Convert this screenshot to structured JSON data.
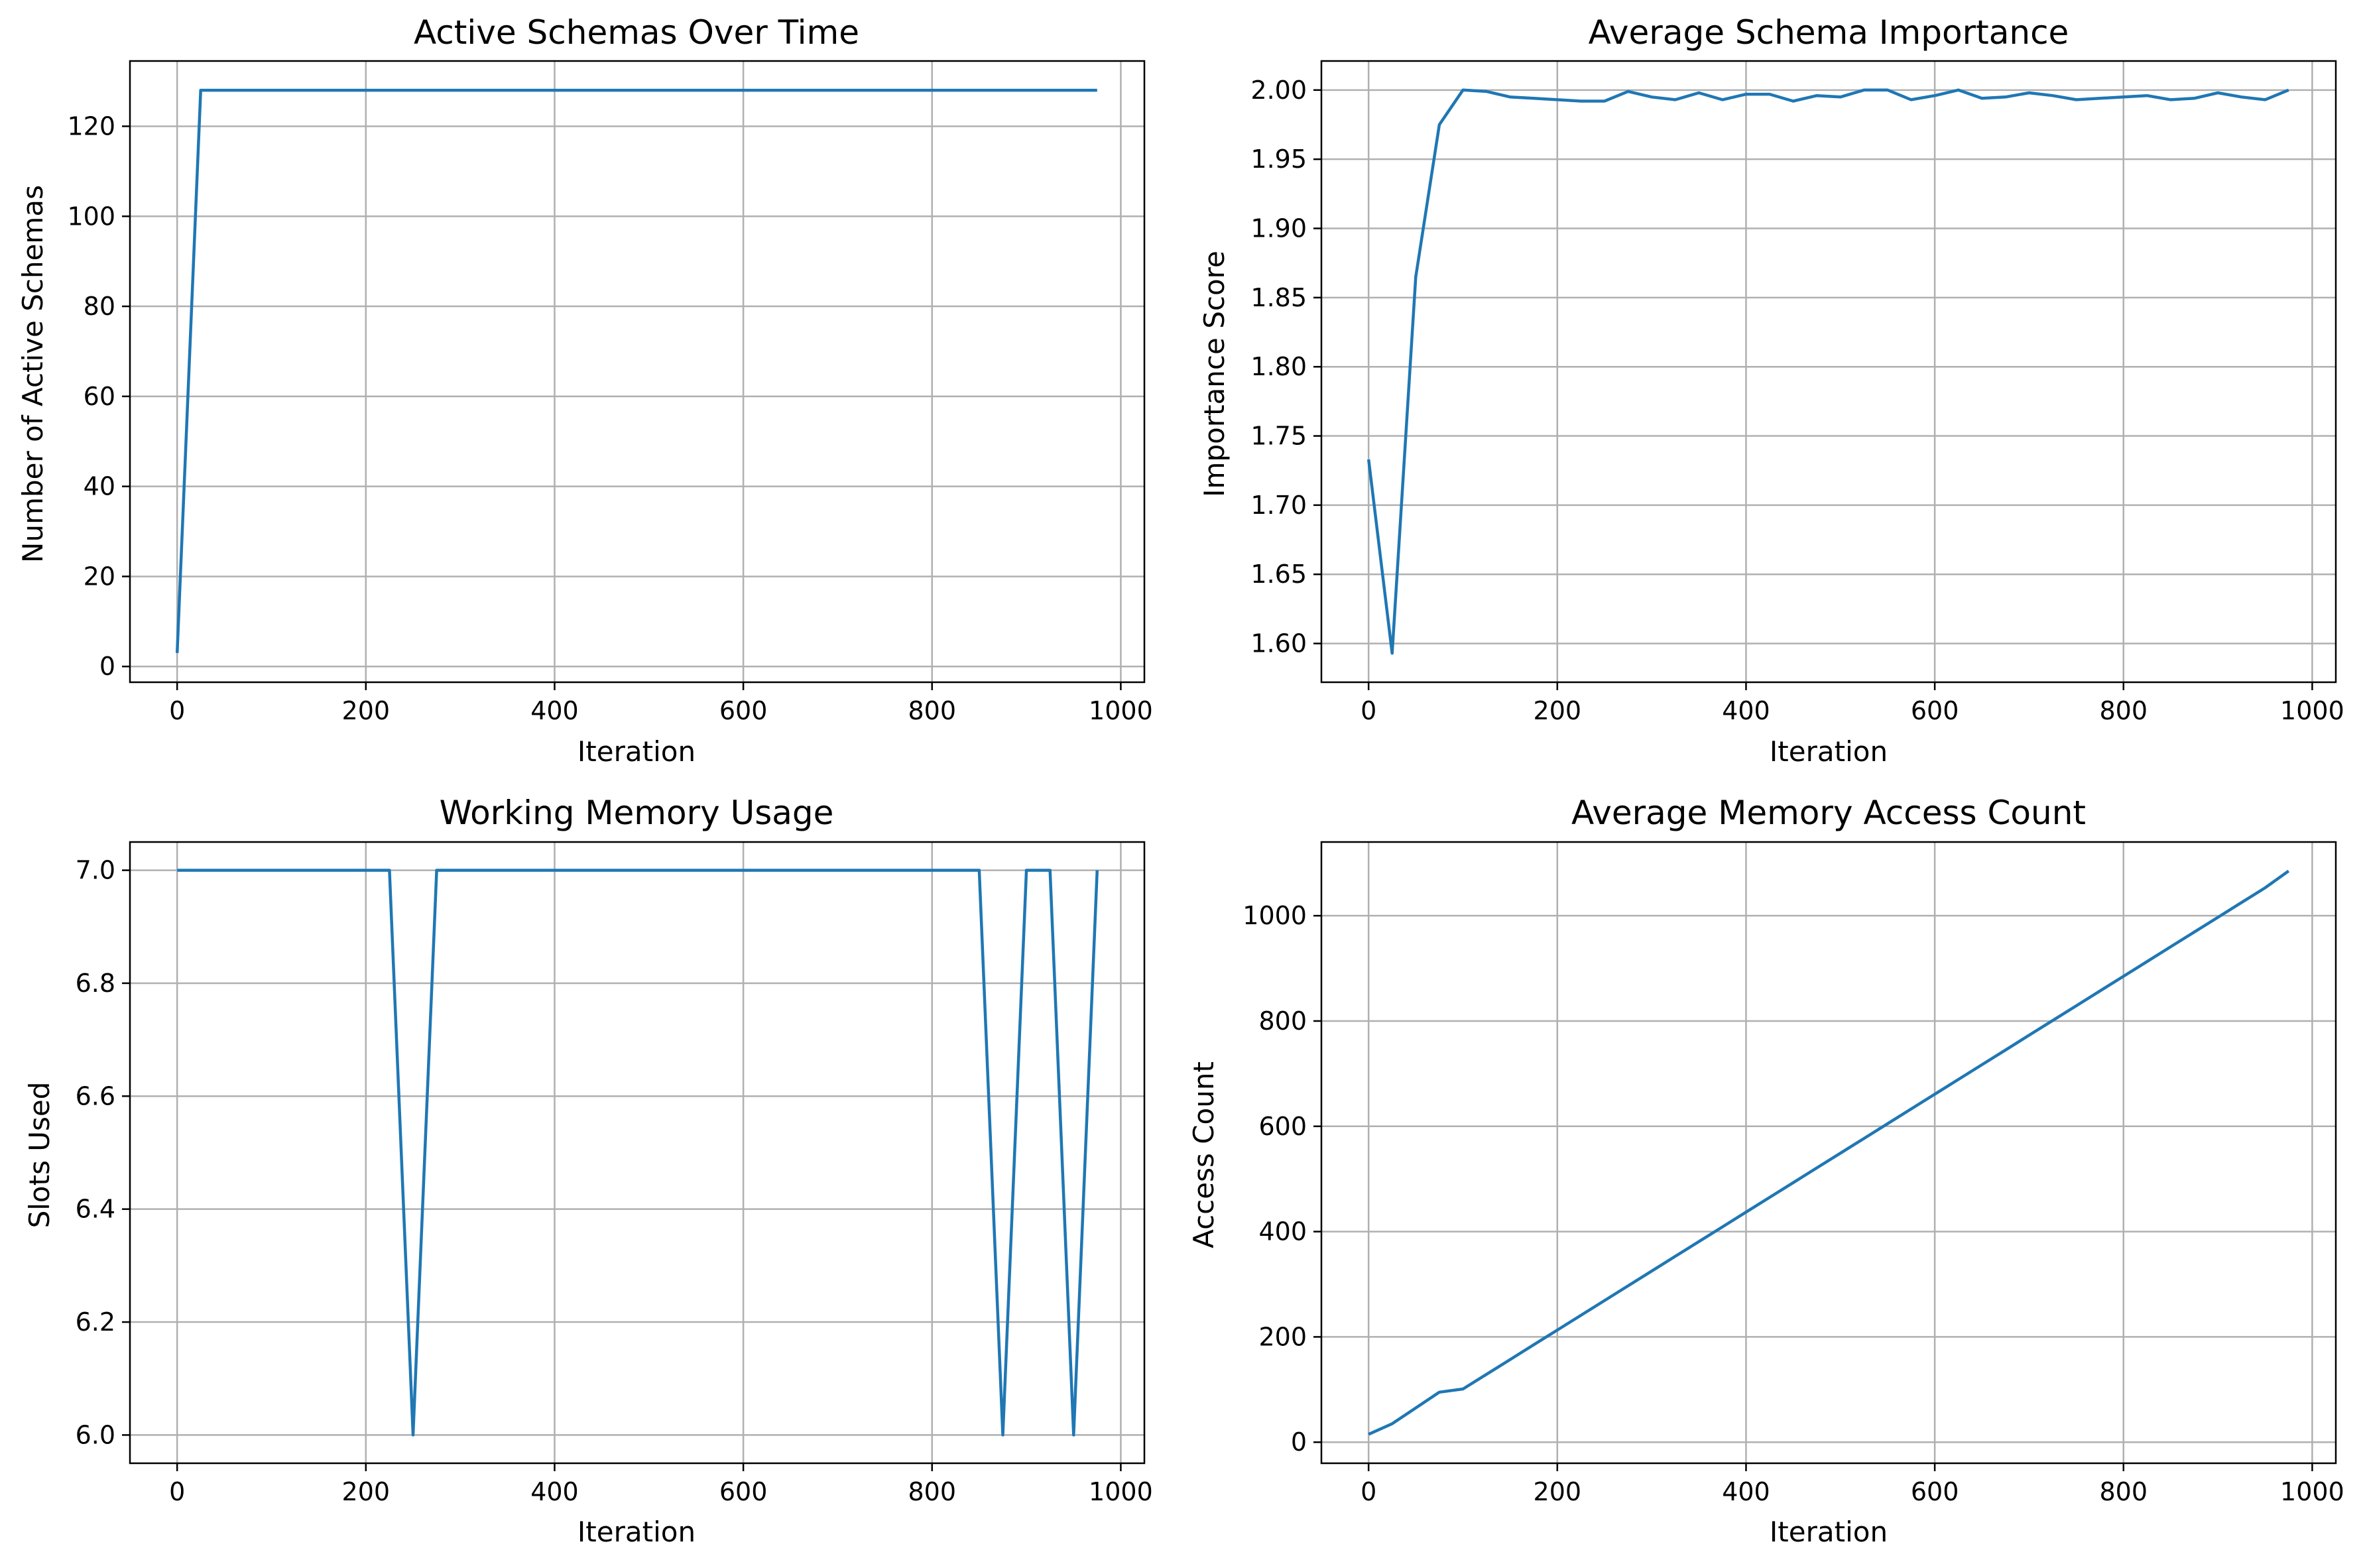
{
  "style": {
    "line_color": "#1f77b4",
    "grid_color": "#b0b0b0"
  },
  "chart_data": [
    {
      "type": "line",
      "title": "Active Schemas Over Time",
      "xlabel": "Iteration",
      "ylabel": "Number of Active Schemas",
      "xlim": [
        -50,
        1025
      ],
      "ylim": [
        -3.5,
        134.5
      ],
      "xticks": [
        0,
        200,
        400,
        600,
        800,
        1000
      ],
      "xtick_labels": [
        "0",
        "200",
        "400",
        "600",
        "800",
        "1000"
      ],
      "yticks": [
        0,
        20,
        40,
        60,
        80,
        100,
        120
      ],
      "ytick_labels": [
        "0",
        "20",
        "40",
        "60",
        "80",
        "100",
        "120"
      ],
      "grid": true,
      "series": [
        {
          "x": [
            0,
            25,
            50,
            75,
            100,
            125,
            150,
            175,
            200,
            225,
            250,
            275,
            300,
            325,
            350,
            375,
            400,
            425,
            450,
            475,
            500,
            525,
            550,
            575,
            600,
            625,
            650,
            675,
            700,
            725,
            750,
            775,
            800,
            825,
            850,
            875,
            900,
            925,
            950,
            975
          ],
          "y": [
            3,
            128,
            128,
            128,
            128,
            128,
            128,
            128,
            128,
            128,
            128,
            128,
            128,
            128,
            128,
            128,
            128,
            128,
            128,
            128,
            128,
            128,
            128,
            128,
            128,
            128,
            128,
            128,
            128,
            128,
            128,
            128,
            128,
            128,
            128,
            128,
            128,
            128,
            128,
            128
          ]
        }
      ]
    },
    {
      "type": "line",
      "title": "Average Schema Importance",
      "xlabel": "Iteration",
      "ylabel": "Importance Score",
      "xlim": [
        -50,
        1025
      ],
      "ylim": [
        1.572,
        2.021
      ],
      "xticks": [
        0,
        200,
        400,
        600,
        800,
        1000
      ],
      "xtick_labels": [
        "0",
        "200",
        "400",
        "600",
        "800",
        "1000"
      ],
      "yticks": [
        1.6,
        1.65,
        1.7,
        1.75,
        1.8,
        1.85,
        1.9,
        1.95,
        2.0
      ],
      "ytick_labels": [
        "1.60",
        "1.65",
        "1.70",
        "1.75",
        "1.80",
        "1.85",
        "1.90",
        "1.95",
        "2.00"
      ],
      "grid": true,
      "series": [
        {
          "x": [
            0,
            25,
            50,
            75,
            100,
            125,
            150,
            175,
            200,
            225,
            250,
            275,
            300,
            325,
            350,
            375,
            400,
            425,
            450,
            475,
            500,
            525,
            550,
            575,
            600,
            625,
            650,
            675,
            700,
            725,
            750,
            775,
            800,
            825,
            850,
            875,
            900,
            925,
            950,
            975
          ],
          "y": [
            1.733,
            1.593,
            1.865,
            1.975,
            2.0,
            1.999,
            1.995,
            1.994,
            1.993,
            1.992,
            1.992,
            1.999,
            1.995,
            1.993,
            1.998,
            1.993,
            1.997,
            1.997,
            1.992,
            1.996,
            1.995,
            2.0,
            2.0,
            1.993,
            1.996,
            2.0,
            1.994,
            1.995,
            1.998,
            1.996,
            1.993,
            1.994,
            1.995,
            1.996,
            1.993,
            1.994,
            1.998,
            1.995,
            1.993,
            2.0
          ]
        }
      ]
    },
    {
      "type": "line",
      "title": "Working Memory Usage",
      "xlabel": "Iteration",
      "ylabel": "Slots Used",
      "xlim": [
        -50,
        1025
      ],
      "ylim": [
        5.95,
        7.05
      ],
      "xticks": [
        0,
        200,
        400,
        600,
        800,
        1000
      ],
      "xtick_labels": [
        "0",
        "200",
        "400",
        "600",
        "800",
        "1000"
      ],
      "yticks": [
        6.0,
        6.2,
        6.4,
        6.6,
        6.8,
        7.0
      ],
      "ytick_labels": [
        "6.0",
        "6.2",
        "6.4",
        "6.6",
        "6.8",
        "7.0"
      ],
      "grid": true,
      "series": [
        {
          "x": [
            0,
            25,
            50,
            75,
            100,
            125,
            150,
            175,
            200,
            225,
            250,
            275,
            300,
            325,
            350,
            375,
            400,
            425,
            450,
            475,
            500,
            525,
            550,
            575,
            600,
            625,
            650,
            675,
            700,
            725,
            750,
            775,
            800,
            825,
            850,
            875,
            900,
            925,
            950,
            975
          ],
          "y": [
            7,
            7,
            7,
            7,
            7,
            7,
            7,
            7,
            7,
            7,
            6,
            7,
            7,
            7,
            7,
            7,
            7,
            7,
            7,
            7,
            7,
            7,
            7,
            7,
            7,
            7,
            7,
            7,
            7,
            7,
            7,
            7,
            7,
            7,
            7,
            6,
            7,
            7,
            6,
            7
          ]
        }
      ]
    },
    {
      "type": "line",
      "title": "Average Memory Access Count",
      "xlabel": "Iteration",
      "ylabel": "Access Count",
      "xlim": [
        -50,
        1025
      ],
      "ylim": [
        -40,
        1140
      ],
      "xticks": [
        0,
        200,
        400,
        600,
        800,
        1000
      ],
      "xtick_labels": [
        "0",
        "200",
        "400",
        "600",
        "800",
        "1000"
      ],
      "yticks": [
        0,
        200,
        400,
        600,
        800,
        1000
      ],
      "ytick_labels": [
        "0",
        "200",
        "400",
        "600",
        "800",
        "1000"
      ],
      "grid": true,
      "series": [
        {
          "x": [
            0,
            25,
            50,
            75,
            100,
            125,
            150,
            175,
            200,
            225,
            250,
            275,
            300,
            325,
            350,
            375,
            400,
            425,
            450,
            475,
            500,
            525,
            550,
            575,
            600,
            625,
            650,
            675,
            700,
            725,
            750,
            775,
            800,
            825,
            850,
            875,
            900,
            925,
            950,
            975
          ],
          "y": [
            15,
            35,
            65,
            95,
            101,
            129,
            157,
            185,
            213,
            241,
            269,
            297,
            325,
            353,
            381,
            409,
            437,
            465,
            493,
            521,
            549,
            577,
            605,
            633,
            661,
            689,
            717,
            745,
            773,
            801,
            829,
            857,
            885,
            913,
            941,
            969,
            997,
            1025,
            1053,
            1085
          ]
        }
      ]
    }
  ]
}
